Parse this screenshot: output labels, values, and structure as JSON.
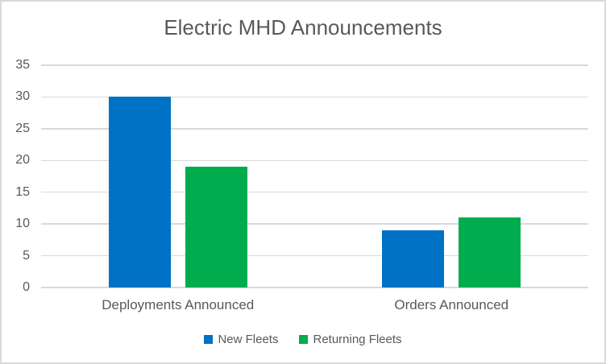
{
  "chart_data": {
    "type": "bar",
    "title": "Electric MHD Announcements",
    "categories": [
      "Deployments Announced",
      "Orders Announced"
    ],
    "series": [
      {
        "name": "New Fleets",
        "color": "#0072C6",
        "values": [
          30,
          9
        ]
      },
      {
        "name": "Returning Fleets",
        "color": "#00AC4E",
        "values": [
          19,
          11
        ]
      }
    ],
    "ylim": [
      0,
      35
    ],
    "yticks": [
      0,
      5,
      10,
      15,
      20,
      25,
      30,
      35
    ],
    "grid": true,
    "legend_position": "bottom",
    "xlabel": "",
    "ylabel": "",
    "colors": {
      "grid": "#D9D9D9",
      "border": "#D9D9D9",
      "text": "#595959",
      "background": "#FFFFFF"
    }
  }
}
